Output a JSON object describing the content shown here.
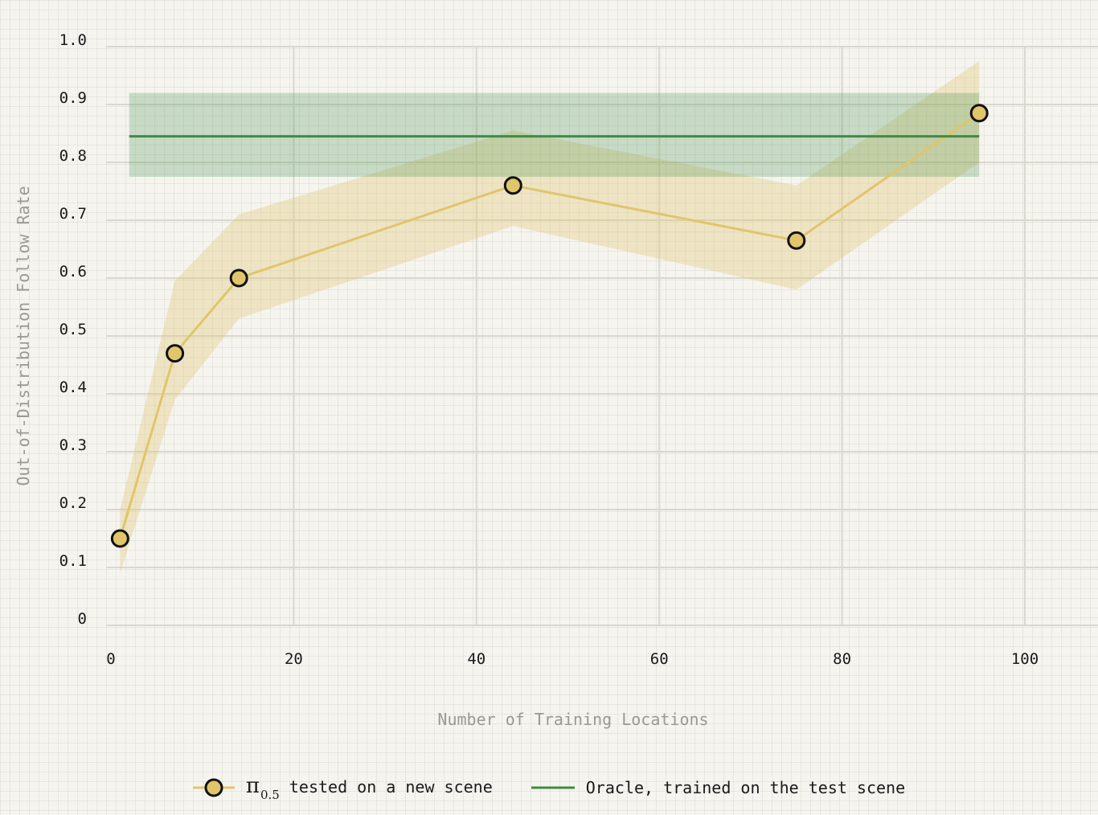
{
  "chart_data": {
    "type": "line",
    "xlabel": "Number of Training Locations",
    "ylabel": "Out-of-Distribution Follow Rate",
    "xlim": [
      0,
      108
    ],
    "ylim": [
      0,
      1.0
    ],
    "x_ticks": [
      "0",
      "20",
      "40",
      "60",
      "80",
      "100"
    ],
    "y_ticks": [
      "0",
      "0.1",
      "0.2",
      "0.3",
      "0.4",
      "0.5",
      "0.6",
      "0.7",
      "0.8",
      "0.9",
      "1.0"
    ],
    "grid": true,
    "legend_position": "bottom",
    "series": [
      {
        "name_symbol": "π",
        "name_subscript": "0.5",
        "name_suffix": " tested on a new scene",
        "color": "#e0c56a",
        "x": [
          1,
          7,
          14,
          44,
          75,
          95
        ],
        "y": [
          0.15,
          0.47,
          0.6,
          0.76,
          0.665,
          0.885
        ],
        "y_lower": [
          0.09,
          0.39,
          0.53,
          0.69,
          0.58,
          0.8
        ],
        "y_upper": [
          0.2,
          0.595,
          0.71,
          0.855,
          0.76,
          0.975
        ]
      },
      {
        "name": "Oracle, trained on the test scene",
        "color": "#3e8b46",
        "x": [
          2,
          95
        ],
        "y": [
          0.845,
          0.845
        ],
        "y_lower": [
          0.775,
          0.775
        ],
        "y_upper": [
          0.92,
          0.92
        ]
      }
    ]
  }
}
